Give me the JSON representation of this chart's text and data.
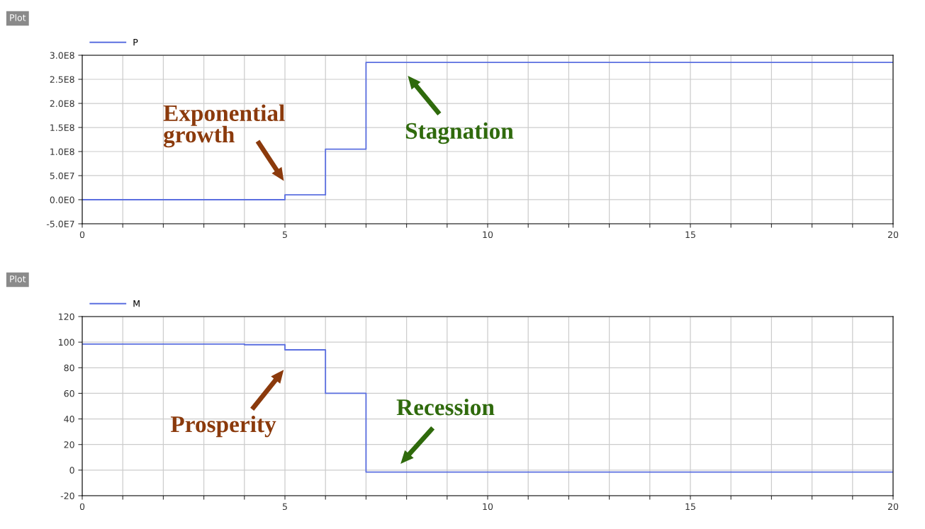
{
  "chart_data": [
    {
      "type": "step",
      "title": "Plot",
      "legend": "top left",
      "grid": true,
      "x": [
        0,
        4,
        5,
        6,
        7,
        20
      ],
      "series": [
        {
          "name": "P",
          "color": "#5b6fe0",
          "values": [
            0,
            0,
            10000000,
            105000000,
            285000000,
            285000000
          ]
        }
      ],
      "xlim": [
        0,
        20
      ],
      "xticks": [
        0,
        {
          "value": 1,
          "label": null
        },
        {
          "value": 2,
          "label": null
        },
        {
          "value": 3,
          "label": null
        },
        {
          "value": 4,
          "label": null
        },
        5,
        {
          "value": 6,
          "label": null
        },
        {
          "value": 7,
          "label": null
        },
        {
          "value": 8,
          "label": null
        },
        {
          "value": 9,
          "label": null
        },
        10,
        {
          "value": 11,
          "label": null
        },
        {
          "value": 12,
          "label": null
        },
        {
          "value": 13,
          "label": null
        },
        {
          "value": 14,
          "label": null
        },
        15,
        {
          "value": 16,
          "label": null
        },
        {
          "value": 17,
          "label": null
        },
        {
          "value": 18,
          "label": null
        },
        {
          "value": 19,
          "label": null
        },
        20
      ],
      "ylim": [
        -50000000,
        300000000
      ],
      "yticks": [
        {
          "value": -50000000,
          "label": "-5.0E7"
        },
        {
          "value": 0,
          "label": "0.0E0"
        },
        {
          "value": 50000000,
          "label": "5.0E7"
        },
        {
          "value": 100000000,
          "label": "1.0E8"
        },
        {
          "value": 150000000,
          "label": "1.5E8"
        },
        {
          "value": 200000000,
          "label": "2.0E8"
        },
        {
          "value": 250000000,
          "label": "2.5E8"
        },
        {
          "value": 300000000,
          "label": "3.0E8"
        }
      ],
      "annotations": [
        "Exponential\ngrowth",
        "Stagnation"
      ]
    },
    {
      "type": "step",
      "title": "Plot",
      "legend": "top left",
      "grid": true,
      "x": [
        0,
        4,
        5,
        6,
        7,
        20
      ],
      "series": [
        {
          "name": "M",
          "color": "#5b6fe0",
          "values": [
            98.5,
            98,
            94,
            60,
            -1.5,
            -1.5
          ]
        }
      ],
      "xlim": [
        0,
        20
      ],
      "xticks": [
        0,
        {
          "value": 1,
          "label": null
        },
        {
          "value": 2,
          "label": null
        },
        {
          "value": 3,
          "label": null
        },
        {
          "value": 4,
          "label": null
        },
        5,
        {
          "value": 6,
          "label": null
        },
        {
          "value": 7,
          "label": null
        },
        {
          "value": 8,
          "label": null
        },
        {
          "value": 9,
          "label": null
        },
        10,
        {
          "value": 11,
          "label": null
        },
        {
          "value": 12,
          "label": null
        },
        {
          "value": 13,
          "label": null
        },
        {
          "value": 14,
          "label": null
        },
        15,
        {
          "value": 16,
          "label": null
        },
        {
          "value": 17,
          "label": null
        },
        {
          "value": 18,
          "label": null
        },
        {
          "value": 19,
          "label": null
        },
        20
      ],
      "ylim": [
        -20,
        120
      ],
      "yticks": [
        -20,
        0,
        20,
        40,
        60,
        80,
        100,
        120
      ],
      "annotations": [
        "Prosperity",
        "Recession"
      ]
    }
  ]
}
